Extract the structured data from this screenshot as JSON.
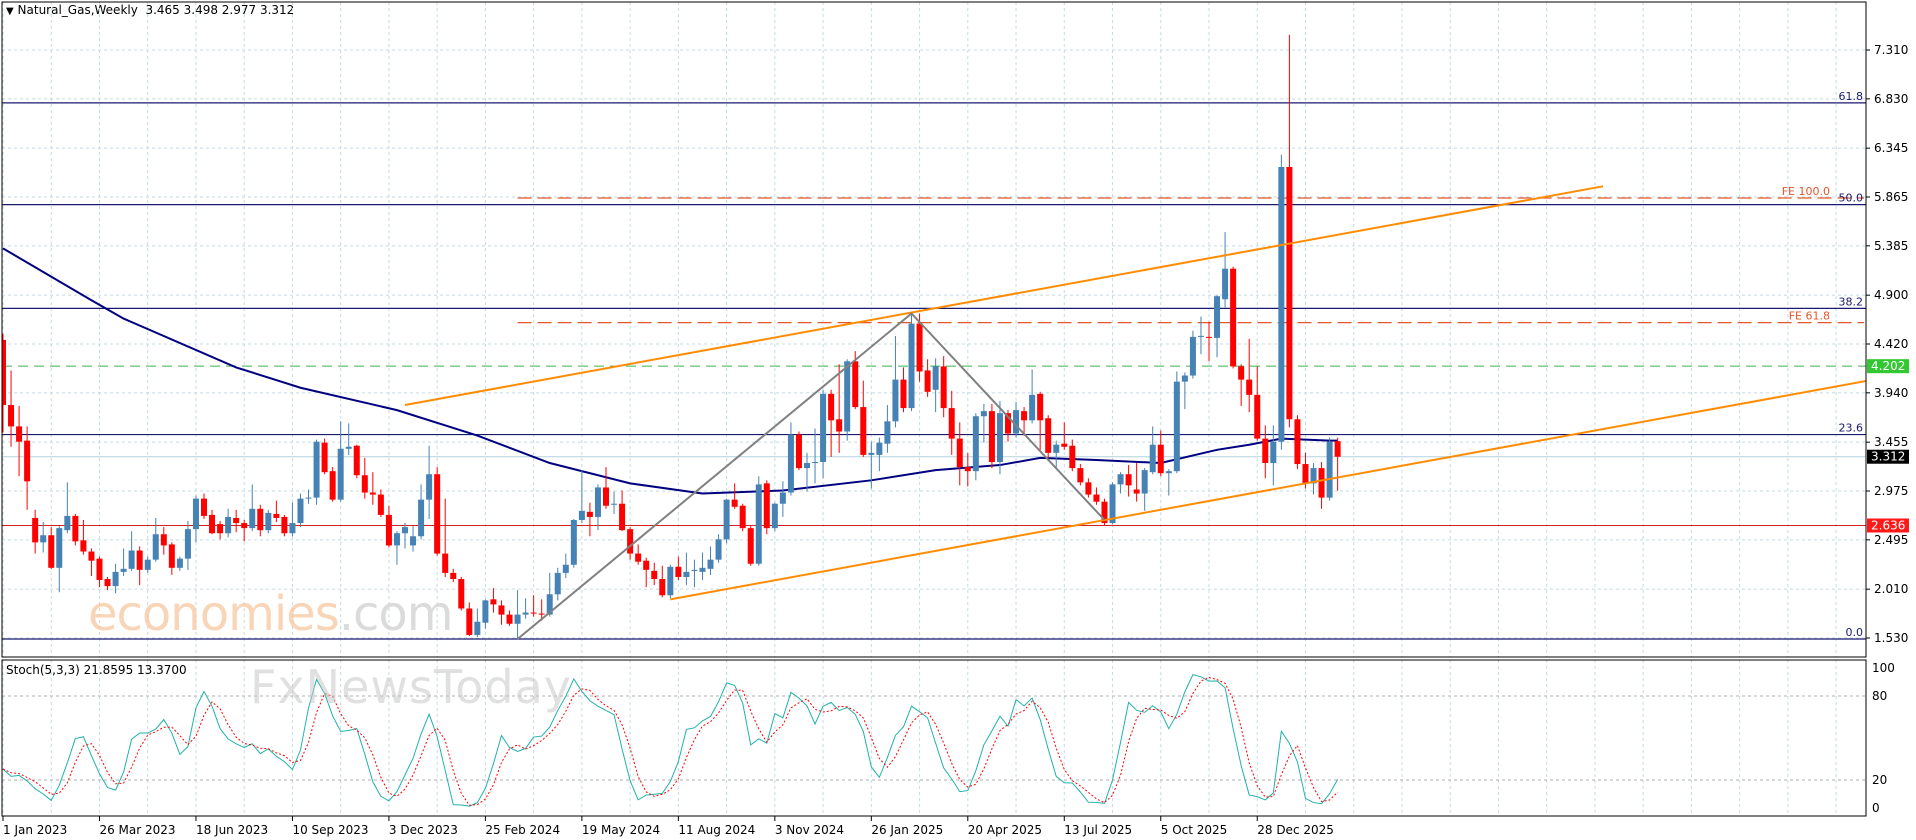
{
  "header": {
    "symbol_line": "Natural_Gas,Weekly  3.465 3.498 2.977 3.312",
    "menu_icon": "triangle-down-icon"
  },
  "watermark": {
    "brand1": "economies",
    "brand2": ".com",
    "brand3": "FxNewsToday"
  },
  "stoch": {
    "label": "Stoch(5,3,3) 21.8595 13.3700",
    "period_k": 5,
    "period_d": 3,
    "slowing": 3,
    "levels": [
      20,
      80
    ],
    "axis_labels": [
      "100",
      "80",
      "20",
      "0"
    ],
    "k_color": "#20b2aa",
    "d_color": "#ff0000"
  },
  "colors": {
    "bull": "#4682b4",
    "bear": "#ff0000",
    "ma": "#000080",
    "channel": "#ff8c00",
    "zigzag": "#808080",
    "fib": "#191970",
    "fe": "#e2582a",
    "support_green": "#3cb44b",
    "support_red": "#d42020",
    "price_line": "#b4d2e0"
  },
  "chart_data": {
    "type": "candlestick",
    "title": "Natural_Gas,Weekly",
    "interval": "weekly",
    "first_date": "2023-01-01",
    "y_ticks": [
      "7.310",
      "6.830",
      "6.345",
      "5.865",
      "5.385",
      "4.900",
      "4.420",
      "3.940",
      "3.455",
      "2.975",
      "2.495",
      "2.010",
      "1.530"
    ],
    "x_ticks": [
      {
        "date": "2023-01-01",
        "label": "1 Jan 2023"
      },
      {
        "date": "2023-03-26",
        "label": "26 Mar 2023"
      },
      {
        "date": "2023-06-18",
        "label": "18 Jun 2023"
      },
      {
        "date": "2023-09-10",
        "label": "10 Sep 2023"
      },
      {
        "date": "2023-12-03",
        "label": "3 Dec 2023"
      },
      {
        "date": "2024-02-25",
        "label": "25 Feb 2024"
      },
      {
        "date": "2024-05-19",
        "label": "19 May 2024"
      },
      {
        "date": "2024-08-11",
        "label": "11 Aug 2024"
      },
      {
        "date": "2024-11-03",
        "label": "3 Nov 2024"
      },
      {
        "date": "2025-01-26",
        "label": "26 Jan 2025"
      },
      {
        "date": "2025-04-20",
        "label": "20 Apr 2025"
      },
      {
        "date": "2025-07-13",
        "label": "13 Jul 2025"
      },
      {
        "date": "2025-10-05",
        "label": "5 Oct 2025"
      },
      {
        "date": "2025-12-28",
        "label": "28 Dec 2025"
      }
    ],
    "grid": true,
    "ohlc_columns": [
      "open",
      "high",
      "low",
      "close"
    ],
    "ohlc": [
      [
        4.46,
        4.52,
        3.55,
        3.82
      ],
      [
        3.82,
        4.16,
        3.41,
        3.61
      ],
      [
        3.61,
        3.81,
        3.12,
        3.46
      ],
      [
        3.47,
        3.61,
        2.79,
        3.07
      ],
      [
        2.71,
        2.79,
        2.36,
        2.47
      ],
      [
        2.47,
        2.67,
        2.37,
        2.54
      ],
      [
        2.54,
        2.62,
        2.21,
        2.22
      ],
      [
        2.22,
        2.63,
        1.98,
        2.61
      ],
      [
        2.59,
        3.06,
        2.56,
        2.73
      ],
      [
        2.73,
        2.75,
        2.44,
        2.48
      ],
      [
        2.49,
        2.69,
        2.35,
        2.38
      ],
      [
        2.38,
        2.41,
        2.14,
        2.29
      ],
      [
        2.31,
        2.33,
        2.03,
        2.1
      ],
      [
        2.11,
        2.13,
        2.0,
        2.04
      ],
      [
        2.04,
        2.26,
        1.97,
        2.18
      ],
      [
        2.18,
        2.41,
        2.14,
        2.21
      ],
      [
        2.21,
        2.58,
        2.19,
        2.39
      ],
      [
        2.39,
        2.43,
        2.05,
        2.2
      ],
      [
        2.2,
        2.33,
        2.17,
        2.3
      ],
      [
        2.3,
        2.71,
        2.28,
        2.55
      ],
      [
        2.55,
        2.62,
        2.35,
        2.44
      ],
      [
        2.45,
        2.47,
        2.15,
        2.22
      ],
      [
        2.22,
        2.33,
        2.19,
        2.31
      ],
      [
        2.31,
        2.68,
        2.2,
        2.6
      ],
      [
        2.6,
        2.93,
        2.47,
        2.9
      ],
      [
        2.9,
        2.95,
        2.7,
        2.73
      ],
      [
        2.74,
        2.79,
        2.55,
        2.56
      ],
      [
        2.65,
        2.68,
        2.5,
        2.56
      ],
      [
        2.56,
        2.8,
        2.52,
        2.72
      ],
      [
        2.71,
        2.79,
        2.57,
        2.66
      ],
      [
        2.66,
        2.69,
        2.48,
        2.61
      ],
      [
        2.61,
        3.04,
        2.58,
        2.8
      ],
      [
        2.8,
        2.84,
        2.53,
        2.59
      ],
      [
        2.59,
        2.79,
        2.56,
        2.76
      ],
      [
        2.75,
        2.88,
        2.67,
        2.71
      ],
      [
        2.72,
        2.74,
        2.53,
        2.56
      ],
      [
        2.56,
        2.86,
        2.53,
        2.66
      ],
      [
        2.66,
        2.95,
        2.62,
        2.9
      ],
      [
        2.9,
        2.99,
        2.85,
        2.91
      ],
      [
        2.91,
        3.48,
        2.84,
        3.46
      ],
      [
        3.45,
        3.49,
        3.14,
        3.16
      ],
      [
        3.17,
        3.21,
        2.87,
        2.89
      ],
      [
        2.89,
        3.66,
        2.87,
        3.39
      ],
      [
        3.39,
        3.64,
        3.33,
        3.41
      ],
      [
        3.42,
        3.43,
        3.1,
        3.13
      ],
      [
        3.13,
        3.3,
        2.9,
        2.96
      ],
      [
        2.96,
        3.16,
        2.84,
        2.94
      ],
      [
        2.94,
        2.99,
        2.72,
        2.74
      ],
      [
        2.74,
        2.83,
        2.42,
        2.44
      ],
      [
        2.44,
        2.58,
        2.25,
        2.56
      ],
      [
        2.56,
        2.66,
        2.41,
        2.62
      ],
      [
        2.44,
        2.63,
        2.38,
        2.53
      ],
      [
        2.53,
        3.04,
        2.5,
        2.89
      ],
      [
        2.89,
        3.42,
        2.7,
        3.14
      ],
      [
        3.14,
        3.21,
        2.34,
        2.36
      ],
      [
        2.36,
        2.9,
        2.13,
        2.17
      ],
      [
        2.17,
        2.21,
        2.08,
        2.11
      ],
      [
        2.11,
        2.13,
        1.8,
        1.82
      ],
      [
        1.82,
        1.88,
        1.55,
        1.56
      ],
      [
        1.56,
        1.82,
        1.54,
        1.69
      ],
      [
        1.68,
        1.91,
        1.62,
        1.9
      ],
      [
        1.91,
        2.02,
        1.78,
        1.86
      ],
      [
        1.85,
        1.9,
        1.66,
        1.76
      ],
      [
        1.76,
        1.8,
        1.65,
        1.67
      ],
      [
        1.67,
        2.0,
        1.52,
        1.76
      ],
      [
        1.76,
        1.92,
        1.72,
        1.78
      ],
      [
        1.78,
        1.95,
        1.74,
        1.77
      ],
      [
        1.77,
        1.91,
        1.7,
        1.76
      ],
      [
        1.76,
        2.17,
        1.74,
        1.96
      ],
      [
        1.96,
        2.22,
        1.9,
        2.17
      ],
      [
        2.17,
        2.36,
        2.12,
        2.25
      ],
      [
        2.25,
        2.7,
        2.22,
        2.69
      ],
      [
        2.69,
        3.18,
        2.66,
        2.78
      ],
      [
        2.77,
        2.86,
        2.53,
        2.72
      ],
      [
        2.72,
        3.04,
        2.59,
        3.01
      ],
      [
        3.01,
        3.21,
        2.8,
        2.83
      ],
      [
        2.84,
        2.97,
        2.75,
        2.85
      ],
      [
        2.85,
        2.98,
        2.58,
        2.59
      ],
      [
        2.6,
        2.62,
        2.3,
        2.36
      ],
      [
        2.36,
        2.45,
        2.25,
        2.28
      ],
      [
        2.29,
        2.32,
        2.03,
        2.2
      ],
      [
        2.19,
        2.27,
        2.05,
        2.11
      ],
      [
        2.11,
        2.24,
        1.93,
        1.95
      ],
      [
        1.95,
        2.25,
        1.92,
        2.23
      ],
      [
        2.23,
        2.33,
        2.1,
        2.13
      ],
      [
        2.13,
        2.37,
        2.05,
        2.18
      ],
      [
        2.19,
        2.3,
        2.03,
        2.2
      ],
      [
        2.18,
        2.37,
        2.1,
        2.22
      ],
      [
        2.21,
        2.43,
        2.15,
        2.3
      ],
      [
        2.3,
        2.55,
        2.27,
        2.5
      ],
      [
        2.5,
        2.9,
        2.46,
        2.89
      ],
      [
        2.89,
        3.05,
        2.8,
        2.82
      ],
      [
        2.83,
        2.85,
        2.58,
        2.61
      ],
      [
        2.61,
        2.63,
        2.24,
        2.26
      ],
      [
        2.26,
        3.12,
        2.24,
        3.04
      ],
      [
        3.05,
        3.08,
        2.55,
        2.61
      ],
      [
        2.61,
        2.86,
        2.58,
        2.85
      ],
      [
        2.85,
        3.07,
        2.72,
        2.96
      ],
      [
        2.96,
        3.65,
        2.93,
        3.53
      ],
      [
        3.53,
        3.56,
        3.18,
        3.2
      ],
      [
        3.2,
        3.35,
        2.97,
        3.25
      ],
      [
        3.25,
        3.59,
        3.05,
        3.26
      ],
      [
        3.26,
        3.97,
        3.1,
        3.93
      ],
      [
        3.93,
        3.97,
        3.31,
        3.67
      ],
      [
        3.68,
        4.22,
        3.35,
        3.56
      ],
      [
        3.56,
        4.27,
        3.47,
        4.25
      ],
      [
        4.25,
        4.35,
        3.78,
        3.8
      ],
      [
        3.8,
        4.06,
        3.31,
        3.33
      ],
      [
        3.33,
        3.46,
        3.0,
        3.35
      ],
      [
        3.33,
        3.5,
        3.17,
        3.45
      ],
      [
        3.44,
        3.82,
        3.35,
        3.66
      ],
      [
        3.66,
        4.5,
        3.6,
        4.07
      ],
      [
        4.07,
        4.19,
        3.75,
        3.79
      ],
      [
        3.79,
        4.72,
        3.76,
        4.62
      ],
      [
        4.62,
        4.72,
        4.05,
        4.15
      ],
      [
        4.16,
        4.27,
        3.9,
        3.95
      ],
      [
        3.97,
        4.28,
        3.75,
        4.2
      ],
      [
        4.2,
        4.3,
        3.7,
        3.79
      ],
      [
        3.79,
        3.96,
        3.33,
        3.49
      ],
      [
        3.49,
        3.65,
        3.03,
        3.21
      ],
      [
        3.21,
        3.35,
        3.02,
        3.17
      ],
      [
        3.17,
        3.74,
        3.08,
        3.71
      ],
      [
        3.71,
        3.83,
        3.45,
        3.76
      ],
      [
        3.76,
        3.83,
        3.2,
        3.26
      ],
      [
        3.26,
        3.86,
        3.14,
        3.74
      ],
      [
        3.74,
        3.77,
        3.46,
        3.54
      ],
      [
        3.54,
        3.85,
        3.5,
        3.77
      ],
      [
        3.76,
        3.8,
        3.52,
        3.67
      ],
      [
        3.67,
        4.17,
        3.64,
        3.92
      ],
      [
        3.93,
        3.95,
        3.36,
        3.67
      ],
      [
        3.69,
        3.72,
        3.3,
        3.35
      ],
      [
        3.35,
        3.47,
        3.19,
        3.43
      ],
      [
        3.44,
        3.65,
        3.38,
        3.41
      ],
      [
        3.42,
        3.48,
        3.17,
        3.2
      ],
      [
        3.2,
        3.24,
        3.03,
        3.06
      ],
      [
        3.06,
        3.1,
        2.91,
        2.94
      ],
      [
        2.94,
        3.01,
        2.84,
        2.87
      ],
      [
        2.87,
        2.9,
        2.64,
        2.66
      ],
      [
        2.66,
        3.06,
        2.65,
        3.04
      ],
      [
        3.04,
        3.16,
        2.95,
        3.14
      ],
      [
        3.14,
        3.23,
        2.92,
        3.03
      ],
      [
        2.99,
        3.25,
        2.87,
        2.95
      ],
      [
        2.95,
        3.2,
        2.78,
        3.18
      ],
      [
        3.16,
        3.61,
        3.14,
        3.43
      ],
      [
        3.43,
        3.57,
        3.12,
        3.15
      ],
      [
        3.15,
        3.19,
        2.93,
        3.17
      ],
      [
        3.17,
        4.15,
        3.15,
        4.05
      ],
      [
        4.05,
        4.14,
        3.78,
        4.11
      ],
      [
        4.11,
        4.55,
        4.08,
        4.49
      ],
      [
        4.49,
        4.69,
        4.32,
        4.5
      ],
      [
        4.49,
        4.64,
        4.25,
        4.48
      ],
      [
        4.48,
        4.9,
        4.29,
        4.89
      ],
      [
        4.86,
        5.52,
        4.78,
        5.16
      ],
      [
        5.16,
        5.18,
        4.18,
        4.2
      ],
      [
        4.2,
        4.22,
        3.81,
        4.07
      ],
      [
        4.07,
        4.47,
        3.75,
        3.92
      ],
      [
        3.92,
        4.2,
        3.47,
        3.49
      ],
      [
        3.49,
        3.62,
        3.1,
        3.25
      ],
      [
        3.25,
        3.62,
        3.03,
        3.46
      ],
      [
        3.46,
        6.28,
        3.38,
        6.16
      ],
      [
        6.16,
        7.46,
        3.6,
        3.68
      ],
      [
        3.68,
        3.72,
        3.19,
        3.24
      ],
      [
        3.24,
        3.35,
        3.0,
        3.05
      ],
      [
        3.05,
        3.25,
        2.94,
        3.2
      ],
      [
        3.2,
        3.26,
        2.8,
        2.91
      ],
      [
        2.91,
        3.5,
        2.88,
        3.46
      ],
      [
        3.465,
        3.498,
        2.977,
        3.312
      ]
    ],
    "moving_average": [
      [
        "2023-01-01",
        5.36
      ],
      [
        "2023-03-19",
        4.85
      ],
      [
        "2023-04-16",
        4.67
      ],
      [
        "2023-07-23",
        4.19
      ],
      [
        "2023-09-17",
        3.99
      ],
      [
        "2023-12-10",
        3.77
      ],
      [
        "2024-02-18",
        3.52
      ],
      [
        "2024-04-21",
        3.25
      ],
      [
        "2024-06-30",
        3.05
      ],
      [
        "2024-09-01",
        2.95
      ],
      [
        "2024-11-10",
        2.98
      ],
      [
        "2025-01-26",
        3.08
      ],
      [
        "2025-03-23",
        3.18
      ],
      [
        "2025-05-18",
        3.23
      ],
      [
        "2025-06-22",
        3.3
      ],
      [
        "2025-08-10",
        3.28
      ],
      [
        "2025-10-05",
        3.25
      ],
      [
        "2025-11-23",
        3.38
      ],
      [
        "2025-12-21",
        3.43
      ],
      [
        "2026-01-18",
        3.49
      ],
      [
        "2026-03-01",
        3.47
      ],
      [
        "2026-03-08",
        3.47
      ]
    ],
    "fib_retracement": [
      {
        "label": "61.8",
        "price": 6.79
      },
      {
        "label": "50.0",
        "price": 5.79
      },
      {
        "label": "38.2",
        "price": 4.77
      },
      {
        "label": "23.6",
        "price": 3.53
      },
      {
        "label": "0.0",
        "price": 1.52
      }
    ],
    "fib_expansion": [
      {
        "label": "FE 100.0",
        "price": 5.855,
        "from": "2024-03-24"
      },
      {
        "label": "FE 61.8",
        "price": 4.63,
        "from": "2024-03-24"
      }
    ],
    "channel_upper": [
      [
        "2023-12-17",
        3.82
      ],
      [
        "2026-10-25",
        5.97
      ]
    ],
    "channel_lower": [
      [
        "2024-08-04",
        1.91
      ],
      [
        "2027-06-13",
        4.06
      ]
    ],
    "zigzag": [
      [
        "2024-03-24",
        1.52
      ],
      [
        "2025-03-02",
        4.72
      ],
      [
        "2025-08-17",
        2.69
      ]
    ],
    "levels": [
      {
        "label": "4.202",
        "price": 4.202,
        "style": "dashed-green"
      },
      {
        "label": "2.636",
        "price": 2.636,
        "style": "solid-red"
      },
      {
        "label": "3.312",
        "price": 3.312,
        "style": "current-price"
      }
    ]
  }
}
